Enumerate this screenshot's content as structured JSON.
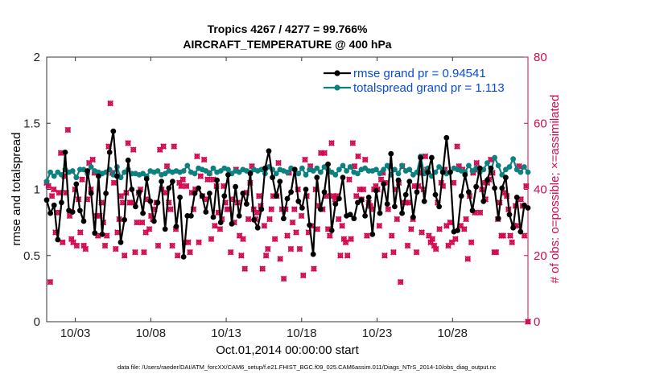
{
  "chart_data": {
    "type": "line",
    "title": "Tropics 4267 / 4277 = 99.766%",
    "subtitle": "AIRCRAFT_TEMPERATURE @ 400 hPa",
    "xlabel": "Oct.01,2014 00:00:00 start",
    "ylabel": "rmse and totalspread",
    "y2label": "# of obs: o=possible; ×=assimilated",
    "footer": "data file: /Users/raeder/DAI/ATM_forcXX/CAM6_setup/f.e21.FHIST_BGC.f09_025.CAM6assim.011/Diags_NTrS_2014-10/obs_diag_output.nc",
    "xlim": [
      1.1,
      33
    ],
    "ylim": [
      0,
      2
    ],
    "y2lim": [
      0,
      80
    ],
    "xticks": [
      3,
      8,
      13,
      18,
      23,
      28
    ],
    "xtick_labels": [
      "10/03",
      "10/08",
      "10/13",
      "10/18",
      "10/23",
      "10/28"
    ],
    "yticks": [
      0,
      0.5,
      1,
      1.5,
      2
    ],
    "ytick_labels": [
      "0",
      "0.5",
      "1",
      "1.5",
      "2"
    ],
    "y2ticks": [
      0,
      20,
      40,
      60,
      80
    ],
    "y2tick_labels": [
      "0",
      "20",
      "40",
      "60",
      "80"
    ],
    "legend_position": "top-right",
    "colors": {
      "rmse": "#000000",
      "spread": "#0d8080",
      "obs": "#d10a52",
      "legend_text": "#0a4bd6"
    },
    "series": [
      {
        "name": "rmse grand pr = 0.94541",
        "axis": "left",
        "values": [
          0.92,
          0.82,
          0.88,
          0.62,
          0.9,
          1.28,
          0.84,
          0.83,
          1.04,
          0.84,
          0.76,
          1.14,
          0.97,
          0.67,
          1.1,
          0.66,
          0.97,
          1.28,
          1.44,
          1.1,
          0.6,
          0.77,
          1.22,
          1.0,
          0.87,
          0.98,
          0.82,
          1.08,
          0.91,
          0.76,
          0.9,
          1.06,
          0.7,
          1.01,
          1.06,
          0.72,
          0.94,
          0.49,
          0.8,
          0.8,
          0.97,
          1.01,
          0.95,
          0.83,
          0.97,
          0.79,
          1.07,
          0.75,
          0.95,
          1.11,
          0.74,
          1.02,
          0.8,
          0.97,
          0.89,
          1.12,
          0.77,
          0.71,
          0.85,
          1.16,
          1.29,
          1.09,
          0.95,
          1.06,
          0.78,
          0.93,
          0.98,
          1.15,
          0.91,
          0.86,
          1.0,
          0.73,
          0.51,
          1.09,
          0.85,
          0.98,
          1.19,
          0.69,
          0.89,
          0.93,
          1.09,
          0.8,
          0.81,
          0.78,
          0.9,
          0.92,
          0.8,
          0.94,
          0.66,
          0.99,
          0.82,
          1.04,
          0.89,
          1.27,
          0.87,
          1.07,
          0.82,
          0.96,
          1.06,
          0.79,
          0.98,
          1.24,
          0.91,
          1.13,
          1.24,
          0.96,
          0.87,
          1.13,
          1.39,
          1.13,
          0.68,
          0.69,
          0.95,
          1.11,
          0.98,
          0.84,
          1.02,
          1.16,
          0.91,
          1.07,
          1.16,
          1.01,
          0.78,
          1.01,
          1.09,
          0.81,
          0.71,
          0.94,
          0.68,
          0.88,
          0.86
        ]
      },
      {
        "name": "totalspread grand pr = 1.113",
        "axis": "left",
        "values": [
          1.06,
          1.13,
          1.1,
          1.13,
          1.11,
          1.15,
          1.13,
          1.14,
          1.09,
          1.15,
          1.15,
          1.12,
          1.17,
          1.14,
          1.13,
          1.12,
          1.13,
          1.15,
          1.11,
          1.17,
          1.09,
          1.13,
          1.15,
          1.12,
          1.12,
          1.11,
          1.12,
          1.1,
          1.14,
          1.13,
          1.14,
          1.11,
          1.12,
          1.14,
          1.13,
          1.14,
          1.13,
          1.14,
          1.18,
          1.13,
          1.12,
          1.16,
          1.15,
          1.14,
          1.12,
          1.16,
          1.13,
          1.14,
          1.16,
          1.15,
          1.12,
          1.14,
          1.13,
          1.15,
          1.14,
          1.13,
          1.15,
          1.14,
          1.15,
          1.12,
          1.17,
          1.15,
          1.12,
          1.15,
          1.14,
          1.13,
          1.16,
          1.15,
          1.12,
          1.16,
          1.11,
          1.15,
          1.14,
          1.16,
          1.13,
          1.17,
          1.15,
          1.13,
          1.11,
          1.15,
          1.18,
          1.14,
          1.17,
          1.13,
          1.12,
          1.15,
          1.16,
          1.14,
          1.14,
          1.15,
          1.12,
          1.15,
          1.18,
          1.11,
          1.15,
          1.12,
          1.18,
          1.14,
          1.15,
          1.11,
          1.13,
          1.25,
          1.12,
          1.16,
          1.1,
          1.13,
          1.17,
          1.15,
          1.12,
          1.13,
          1.16,
          1.15,
          1.14,
          1.13,
          1.18,
          1.14,
          1.16,
          1.13,
          1.15,
          1.2,
          1.14,
          1.24,
          1.18,
          1.11,
          1.15,
          1.17,
          1.23,
          1.15,
          1.13,
          1.17,
          1.13
        ]
      },
      {
        "name": "# of obs (possible / assimilated)",
        "axis": "right",
        "values": [
          42,
          41,
          12,
          38,
          40,
          27,
          33,
          39,
          51,
          24,
          44,
          39,
          58,
          32,
          25,
          24,
          40,
          23,
          37,
          27,
          43,
          23,
          22,
          37,
          48,
          40,
          49,
          45,
          32,
          26,
          32,
          36,
          30,
          23,
          26,
          53,
          66,
          45,
          42,
          22,
          27,
          31,
          38,
          36,
          20,
          39,
          54,
          36,
          36,
          52,
          21,
          30,
          39,
          40,
          30,
          21,
          27,
          37,
          28,
          32,
          31,
          34,
          36,
          23,
          52,
          40,
          53,
          39,
          47,
          36,
          34,
          23,
          53,
          28,
          20,
          42,
          41,
          43,
          24,
          41,
          24,
          21,
          39,
          34,
          40,
          50,
          24,
          44,
          38,
          49,
          37,
          43,
          45,
          25,
          43,
          29,
          41,
          33,
          28,
          31,
          41,
          36,
          34,
          34,
          21,
          37,
          30,
          46,
          36,
          26,
          20,
          25,
          16,
          39,
          31,
          42,
          47,
          34,
          31,
          33,
          38,
          35,
          16,
          29,
          20,
          22,
          31,
          34,
          38,
          25,
          38,
          48,
          19,
          34,
          13,
          34,
          26,
          45,
          22,
          30,
          34,
          27,
          40,
          22,
          32,
          14,
          49,
          38,
          27,
          47,
          29,
          16,
          40,
          28,
          35,
          51,
          34,
          51,
          38,
          28,
          26,
          54,
          38,
          37,
          38,
          31,
          20,
          29,
          25,
          24,
          20,
          43,
          25,
          54,
          47,
          38,
          50,
          40,
          37,
          40,
          49,
          26,
          36,
          35,
          34,
          40,
          41,
          40,
          29,
          43,
          45,
          20,
          42,
          34,
          47,
          26,
          21,
          40,
          31,
          42,
          12,
          47,
          36,
          36,
          23,
          36,
          28,
          31,
          41,
          21,
          41,
          45,
          27,
          40,
          50,
          46,
          26,
          24,
          25,
          23,
          22,
          36,
          28,
          42,
          41,
          46,
          29,
          23,
          30,
          24,
          42,
          25,
          53,
          47,
          29,
          46,
          28,
          31,
          19,
          38,
          24,
          45,
          33,
          48,
          46,
          33,
          40,
          42,
          37,
          42,
          43,
          49,
          45,
          21,
          21,
          31,
          36,
          26,
          26,
          39,
          38,
          34,
          26,
          24,
          29,
          35,
          29,
          47,
          37,
          35,
          26,
          41,
          0
        ]
      }
    ]
  }
}
